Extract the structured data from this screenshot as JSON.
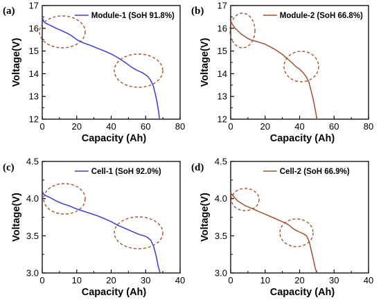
{
  "chart_data": [
    {
      "panel": "(a)",
      "type": "line",
      "xlabel": "Capacity (Ah)",
      "ylabel": "Voltage(V)",
      "xlim": [
        0,
        80
      ],
      "ylim": [
        12,
        17
      ],
      "xticks": [
        "0",
        "20",
        "40",
        "60",
        "80"
      ],
      "yticks": [
        "12",
        "13",
        "14",
        "15",
        "16",
        "17"
      ],
      "series": [
        {
          "name": "Module-1 (SoH 91.8%)",
          "color": "#3b3bd1",
          "x": [
            0,
            0.8,
            2,
            4,
            6,
            8,
            10,
            12,
            14,
            16,
            18,
            20,
            24,
            28,
            32,
            36,
            40,
            44,
            48,
            52,
            55,
            58,
            61,
            63,
            64.5,
            65.5,
            66.5,
            67.5,
            68
          ],
          "y": [
            16.5,
            16.3,
            16.22,
            16.15,
            16.08,
            16.0,
            15.94,
            15.87,
            15.8,
            15.72,
            15.62,
            15.5,
            15.35,
            15.25,
            15.12,
            15.0,
            14.87,
            14.7,
            14.5,
            14.28,
            14.15,
            14.05,
            13.9,
            13.7,
            13.45,
            13.15,
            12.8,
            12.35,
            12.0
          ]
        }
      ],
      "annotations": [
        "dashed-ellipse",
        "dashed-ellipse"
      ]
    },
    {
      "panel": "(b)",
      "type": "line",
      "xlabel": "Capacity (Ah)",
      "ylabel": "Voltage(V)",
      "xlim": [
        0,
        80
      ],
      "ylim": [
        12,
        17
      ],
      "xticks": [
        "0",
        "20",
        "40",
        "60",
        "80"
      ],
      "yticks": [
        "12",
        "13",
        "14",
        "15",
        "16",
        "17"
      ],
      "series": [
        {
          "name": "Module-2 (SoH 66.8%)",
          "color": "#a0522d",
          "x": [
            0,
            0.8,
            2,
            4,
            6,
            8,
            10,
            12,
            15,
            20,
            25,
            30,
            33,
            36,
            38,
            40,
            42,
            44,
            45.5,
            46.5,
            47.5,
            48.5,
            49.5,
            50
          ],
          "y": [
            16.3,
            16.2,
            16.05,
            15.9,
            15.75,
            15.65,
            15.55,
            15.48,
            15.42,
            15.3,
            15.1,
            14.85,
            14.65,
            14.45,
            14.3,
            14.2,
            14.05,
            13.85,
            13.6,
            13.3,
            13.0,
            12.65,
            12.25,
            12.0
          ]
        }
      ],
      "annotations": [
        "dashed-ellipse",
        "dashed-ellipse"
      ]
    },
    {
      "panel": "(c)",
      "type": "line",
      "xlabel": "Capacity (Ah)",
      "ylabel": "Voltage(V)",
      "xlim": [
        0,
        40
      ],
      "ylim": [
        3.0,
        4.5
      ],
      "xticks": [
        "0",
        "10",
        "20",
        "30",
        "40"
      ],
      "yticks": [
        "3.0",
        "3.5",
        "4.0",
        "4.5"
      ],
      "series": [
        {
          "name": "Cell-1 (SoH 92.0%)",
          "color": "#3b3bd1",
          "x": [
            0,
            0.4,
            1,
            2,
            4,
            6,
            8,
            10,
            12,
            14,
            16,
            18,
            20,
            22,
            24,
            26,
            28,
            29.5,
            30.5,
            31.5,
            32.3,
            33,
            33.6,
            34.2
          ],
          "y": [
            4.1,
            4.06,
            4.04,
            4.02,
            3.97,
            3.93,
            3.9,
            3.86,
            3.83,
            3.8,
            3.77,
            3.73,
            3.69,
            3.64,
            3.6,
            3.56,
            3.52,
            3.5,
            3.48,
            3.44,
            3.36,
            3.24,
            3.1,
            3.0
          ]
        }
      ],
      "annotations": [
        "dashed-ellipse",
        "dashed-ellipse"
      ]
    },
    {
      "panel": "(d)",
      "type": "line",
      "xlabel": "Capacity (Ah)",
      "ylabel": "Voltage(V)",
      "xlim": [
        0,
        40
      ],
      "ylim": [
        3.0,
        4.5
      ],
      "xticks": [
        "0",
        "10",
        "20",
        "30",
        "40"
      ],
      "yticks": [
        "3.0",
        "3.5",
        "4.0",
        "4.5"
      ],
      "series": [
        {
          "name": "Cell-2 (SoH 66.9%)",
          "color": "#a0522d",
          "x": [
            0,
            0.4,
            1,
            2,
            4,
            6,
            8,
            10,
            12,
            14,
            16,
            17,
            18,
            19,
            20,
            21,
            22,
            22.8,
            23.4,
            24,
            24.5,
            25
          ],
          "y": [
            4.08,
            4.05,
            4.02,
            3.97,
            3.91,
            3.87,
            3.83,
            3.79,
            3.75,
            3.71,
            3.67,
            3.64,
            3.6,
            3.57,
            3.55,
            3.53,
            3.5,
            3.42,
            3.3,
            3.18,
            3.07,
            3.0
          ]
        }
      ],
      "annotations": [
        "dashed-ellipse",
        "dashed-ellipse"
      ]
    }
  ]
}
